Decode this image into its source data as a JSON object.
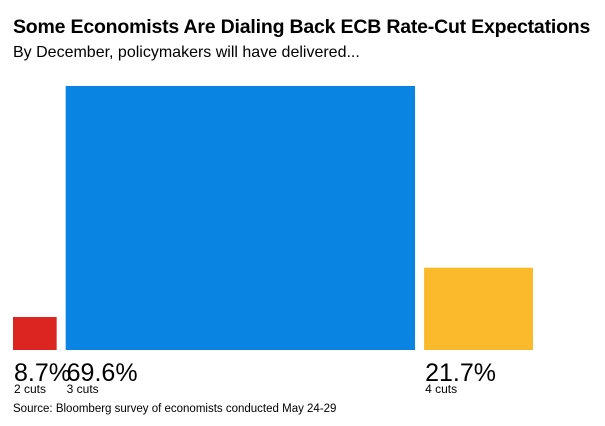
{
  "chart_data": {
    "type": "bar",
    "title": "Some Economists Are Dialing Back ECB Rate-Cut Expectations",
    "subtitle": "By December, policymakers will have delivered...",
    "categories": [
      "2 cuts",
      "3 cuts",
      "4 cuts"
    ],
    "values": [
      8.7,
      69.6,
      21.7
    ],
    "value_labels": [
      "8.7%",
      "69.6%",
      "21.7%"
    ],
    "colors": [
      "#dc2420",
      "#0a84e2",
      "#fbba2c"
    ],
    "source": "Source: Bloomberg survey of economists conducted May 24-29",
    "grid": false,
    "legend": "none"
  }
}
